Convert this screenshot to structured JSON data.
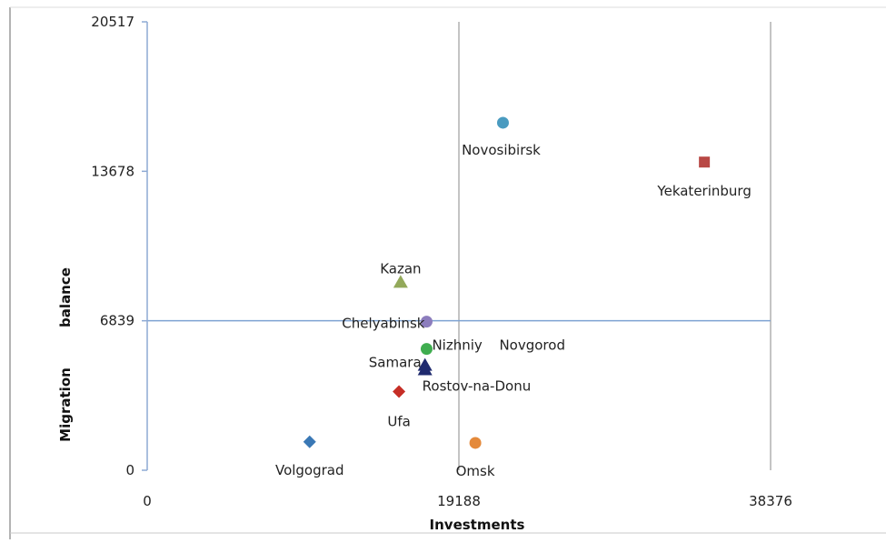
{
  "chart_data": {
    "type": "scatter",
    "title": "",
    "xlabel": "Investments",
    "ylabel": "Migration balance",
    "ylabel_parts": [
      "Migration",
      "balance"
    ],
    "xlim": [
      0,
      38376
    ],
    "ylim": [
      0,
      20517
    ],
    "x_ticks": [
      "0",
      "19188",
      "38376"
    ],
    "y_ticks": [
      "0",
      "6839",
      "13678",
      "20517"
    ],
    "grid": "reference lines at x=19188, x=38376 and y=6839",
    "legend": "none",
    "points": [
      {
        "label": "Novosibirsk",
        "x": 21900,
        "y": 15900,
        "marker": "circle",
        "color": "#4a9bc0"
      },
      {
        "label": "Yekaterinburg",
        "x": 34300,
        "y": 14100,
        "marker": "square",
        "color": "#b84845"
      },
      {
        "label": "Kazan",
        "x": 15600,
        "y": 8600,
        "marker": "triangle",
        "color": "#93a95a"
      },
      {
        "label": "Chelyabinsk",
        "x": 17200,
        "y": 6800,
        "marker": "circle",
        "color": "#8c7dbd"
      },
      {
        "label": "Nizhniy Novgorod",
        "x": 17200,
        "y": 5550,
        "marker": "circle",
        "color": "#3fad4f"
      },
      {
        "label": "Samara",
        "x": 17100,
        "y": 4800,
        "marker": "triangle",
        "color": "#1f2a6e"
      },
      {
        "label": "Rostov-na-Donu",
        "x": 17100,
        "y": 4600,
        "marker": "triangle",
        "color": "#1f2a6e"
      },
      {
        "label": "Ufa",
        "x": 15500,
        "y": 3600,
        "marker": "diamond",
        "color": "#c62e26"
      },
      {
        "label": "Volgograd",
        "x": 10000,
        "y": 1300,
        "marker": "diamond",
        "color": "#3a78b5"
      },
      {
        "label": "Omsk",
        "x": 20200,
        "y": 1250,
        "marker": "circle",
        "color": "#e4893a"
      }
    ]
  }
}
